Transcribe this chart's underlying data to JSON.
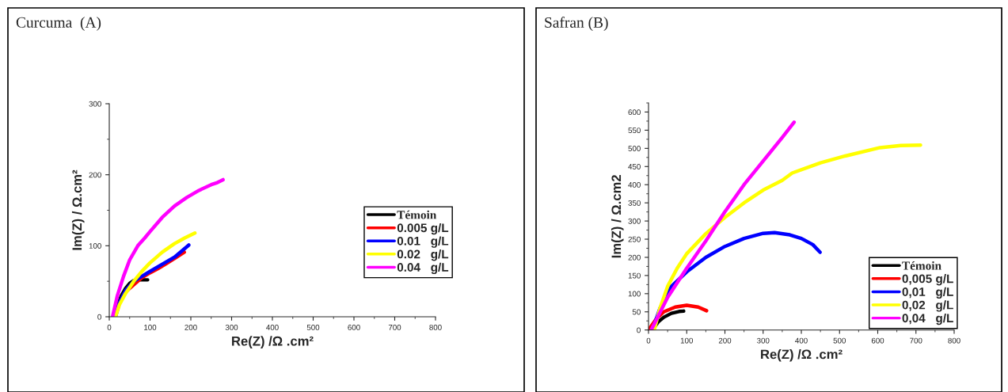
{
  "chart_data": [
    {
      "type": "line",
      "title": "Curcuma  (A)",
      "xlabel": "Re(Z) /Ω .cm²",
      "ylabel": "Im(Z) / Ω.cm²",
      "xlim": [
        0,
        800
      ],
      "ylim": [
        0,
        300
      ],
      "xticks": [
        0,
        100,
        200,
        300,
        400,
        500,
        600,
        700,
        800
      ],
      "yticks": [
        0,
        100,
        200,
        300
      ],
      "legend": "right",
      "line_style": "solid",
      "marker": "none",
      "series": [
        {
          "name": "Témoin",
          "color": "#000000",
          "x": [
            10,
            20,
            30,
            40,
            50,
            60,
            70,
            80,
            94
          ],
          "values": [
            0,
            15,
            30,
            40,
            47,
            51,
            52,
            52,
            52
          ]
        },
        {
          "name": "0.005 g/L",
          "color": "#ff0000",
          "x": [
            15,
            25,
            40,
            60,
            80,
            100,
            120,
            140,
            160,
            184
          ],
          "values": [
            0,
            20,
            35,
            45,
            55,
            62,
            68,
            75,
            82,
            91
          ]
        },
        {
          "name": "0.01   g/L",
          "color": "#0000ff",
          "x": [
            15,
            25,
            40,
            60,
            80,
            100,
            130,
            160,
            195
          ],
          "values": [
            0,
            20,
            37,
            50,
            57,
            64,
            74,
            84,
            101
          ]
        },
        {
          "name": "0.02   g/L",
          "color": "#ffff00",
          "x": [
            15,
            25,
            40,
            60,
            80,
            100,
            130,
            160,
            185,
            210
          ],
          "values": [
            0,
            17,
            33,
            50,
            64,
            76,
            91,
            103,
            111,
            118
          ]
        },
        {
          "name": "0.04   g/L",
          "color": "#ff00ff",
          "x": [
            8,
            20,
            35,
            50,
            70,
            87,
            100,
            130,
            160,
            190,
            220,
            250,
            265,
            279
          ],
          "values": [
            0,
            30,
            57,
            80,
            100,
            111,
            120,
            140,
            156,
            168,
            178,
            186,
            189,
            193
          ]
        }
      ]
    },
    {
      "type": "line",
      "title": "Safran (B)",
      "xlabel": "Re(Z) /Ω .cm²",
      "ylabel": "Im(Z) / Ω.cm2",
      "xlim": [
        0,
        800
      ],
      "ylim": [
        0,
        625
      ],
      "xticks": [
        0,
        100,
        200,
        300,
        400,
        500,
        600,
        700,
        800
      ],
      "yticks": [
        0,
        50,
        100,
        150,
        200,
        250,
        300,
        350,
        400,
        450,
        500,
        550,
        600
      ],
      "legend": "bottom right",
      "line_style": "solid",
      "marker": "none",
      "series": [
        {
          "name": "Témoin",
          "color": "#000000",
          "x": [
            10,
            25,
            40,
            60,
            80,
            92
          ],
          "values": [
            0,
            22,
            35,
            46,
            51,
            52
          ]
        },
        {
          "name": "0,005 g/L",
          "color": "#ff0000",
          "x": [
            0,
            20,
            40,
            70,
            100,
            130,
            152
          ],
          "values": [
            0,
            30,
            50,
            63,
            68,
            63,
            53
          ]
        },
        {
          "name": "0,01   g/L",
          "color": "#0000ff",
          "x": [
            10,
            30,
            60,
            100,
            150,
            200,
            250,
            300,
            330,
            370,
            400,
            430,
            449
          ],
          "values": [
            0,
            60,
            120,
            160,
            200,
            230,
            252,
            266,
            268,
            262,
            252,
            235,
            214
          ]
        },
        {
          "name": "0,02   g/L",
          "color": "#ffff00",
          "x": [
            15,
            30,
            50,
            75,
            100,
            150,
            200,
            250,
            300,
            350,
            376,
            450,
            515,
            606,
            660,
            712
          ],
          "values": [
            0,
            60,
            120,
            170,
            210,
            265,
            310,
            350,
            385,
            412,
            432,
            460,
            479,
            502,
            508,
            509
          ]
        },
        {
          "name": "0,04   g/L",
          "color": "#ff00ff",
          "x": [
            7,
            50,
            100,
            150,
            199,
            250,
            300,
            350,
            381
          ],
          "values": [
            0,
            90,
            170,
            245,
            324,
            400,
            465,
            530,
            572
          ]
        }
      ]
    }
  ]
}
